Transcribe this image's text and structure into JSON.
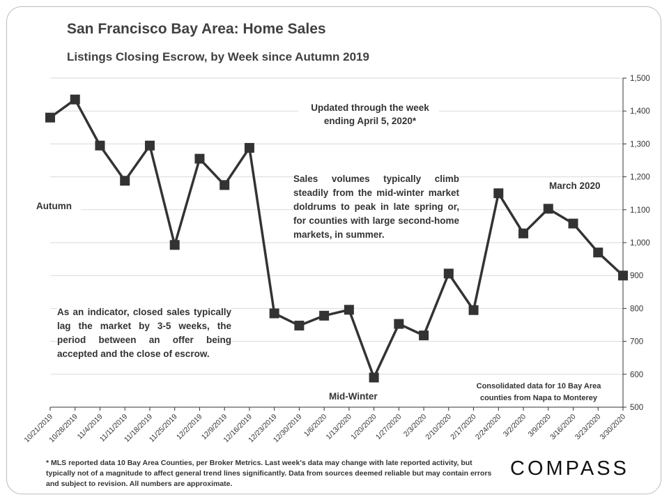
{
  "chart_data": {
    "type": "line",
    "title": "San Francisco Bay Area: Home Sales",
    "subtitle": "Listings Closing Escrow, by Week since Autumn 2019",
    "xlabel": "",
    "ylabel": "",
    "ylim": [
      500,
      1500
    ],
    "yticks": [
      500,
      600,
      700,
      800,
      900,
      1000,
      1100,
      1200,
      1300,
      1400,
      1500
    ],
    "ytick_labels": [
      "500",
      "600",
      "700",
      "800",
      "900",
      "1,000",
      "1,100",
      "1,200",
      "1,300",
      "1,400",
      "1,500"
    ],
    "y_axis_side": "right",
    "grid": true,
    "categories": [
      "10/21/2019",
      "10/28/2019",
      "11/4/2019",
      "11/11/2019",
      "11/18/2019",
      "11/25/2019",
      "12/2/2019",
      "12/9/2019",
      "12/16/2019",
      "12/23/2019",
      "12/30/2019",
      "1/6/2020",
      "1/13/2020",
      "1/20/2020",
      "1/27/2020",
      "2/3/2020",
      "2/10/2020",
      "2/17/2020",
      "2/24/2020",
      "3/2/2020",
      "3/9/2020",
      "3/16/2020",
      "3/23/2020",
      "3/30/2020"
    ],
    "series": [
      {
        "values": [
          1380,
          1435,
          1295,
          1188,
          1295,
          993,
          1255,
          1175,
          1288,
          785,
          748,
          778,
          796,
          590,
          753,
          718,
          906,
          795,
          1150,
          1028,
          1103,
          1058,
          970,
          900
        ],
        "color": "#333333",
        "marker": "square"
      }
    ]
  },
  "annotations": {
    "updated": [
      "Updated through the week",
      "ending April 5, 2020*"
    ],
    "sales_volumes": "Sales volumes typically climb steadily from the mid-winter market doldrums to peak in late spring or, for counties with large second-home markets, in summer.",
    "indicator": "As an indicator, closed sales typically lag the market by 3-5 weeks, the period between an offer being accepted and the close of escrow.",
    "consolidated": [
      "Consolidated data for 10 Bay Area",
      "counties from Napa to Monterey"
    ],
    "autumn": "Autumn",
    "march": "March 2020",
    "midwinter": "Mid-Winter"
  },
  "footnote": "* MLS reported data 10 Bay Area Counties, per Broker Metrics. Last week's data may change with late reported activity, but typically not of a magnitude to affect general trend lines significantly. Data from sources deemed reliable but may contain errors and subject to revision. All numbers are approximate.",
  "logo": "COMPASS"
}
